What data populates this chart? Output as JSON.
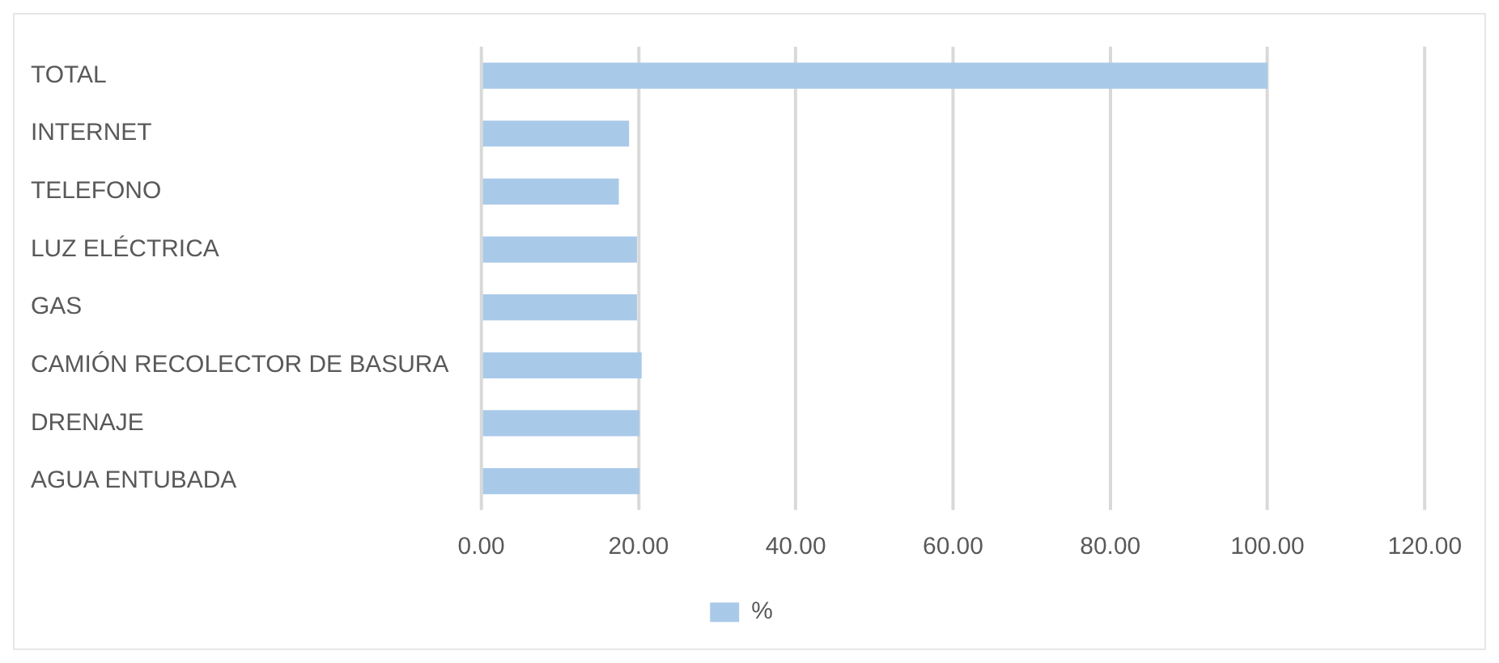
{
  "chart_data": {
    "type": "bar",
    "orientation": "horizontal",
    "categories": [
      "TOTAL",
      "INTERNET",
      "TELEFONO",
      "LUZ ELÉCTRICA",
      "GAS",
      "CAMIÓN RECOLECTOR DE BASURA",
      "DRENAJE",
      "AGUA ENTUBADA"
    ],
    "series": [
      {
        "name": "%",
        "color": "#a9c9e9",
        "values": [
          100,
          18.8,
          17.5,
          19.8,
          19.8,
          20.4,
          20.1,
          20.1
        ]
      }
    ],
    "xlim": [
      0,
      120
    ],
    "xticks": [
      {
        "value": 0,
        "label": "0.00"
      },
      {
        "value": 20,
        "label": "20.00"
      },
      {
        "value": 40,
        "label": "40.00"
      },
      {
        "value": 60,
        "label": "60.00"
      },
      {
        "value": 80,
        "label": "80.00"
      },
      {
        "value": 100,
        "label": "100.00"
      },
      {
        "value": 120,
        "label": "120.00"
      }
    ],
    "grid": "x",
    "legend": "bottom"
  }
}
